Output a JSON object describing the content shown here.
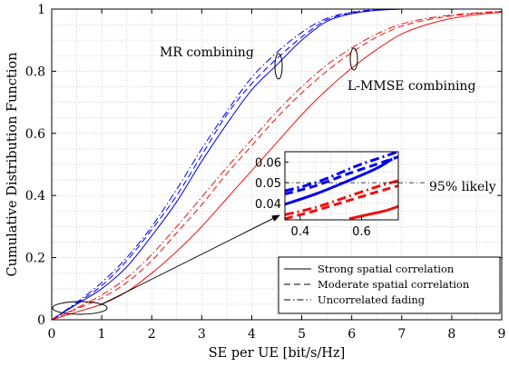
{
  "colors": {
    "mr": "#0000ee",
    "lmmse": "#ee1111",
    "grid": "#bfbfbf",
    "axis": "#000000"
  },
  "chart_data": {
    "type": "line",
    "title": "",
    "xlabel": "SE per UE [bit/s/Hz]",
    "ylabel": "Cumulative Distribution Function",
    "xlim": [
      0,
      9
    ],
    "ylim": [
      0,
      1
    ],
    "xticks": [
      0,
      1,
      2,
      3,
      4,
      5,
      6,
      7,
      8,
      9
    ],
    "yticks": [
      0,
      0.2,
      0.4,
      0.6,
      0.8,
      1
    ],
    "ytick_labels": [
      "0",
      "0.2",
      "0.4",
      "0.6",
      "0.8",
      "1"
    ],
    "grid": true,
    "legend_position": "bottom-right",
    "legend": [
      {
        "label": "Strong spatial correlation",
        "style": "solid"
      },
      {
        "label": "Moderate spatial correlation",
        "style": "dashed"
      },
      {
        "label": "Uncorrelated fading",
        "style": "dashdot"
      }
    ],
    "annotations": {
      "mr": "MR combining",
      "lmmse": "L-MMSE combining",
      "likely": "95% likely"
    },
    "series": [
      {
        "group": "mr",
        "style": "solid",
        "x": [
          0,
          0.5,
          1,
          1.5,
          2,
          2.5,
          3,
          3.5,
          4,
          4.5,
          5,
          5.5,
          6,
          6.5,
          7
        ],
        "y": [
          0,
          0.05,
          0.1,
          0.17,
          0.27,
          0.38,
          0.51,
          0.63,
          0.74,
          0.82,
          0.9,
          0.96,
          0.985,
          0.996,
          1.0
        ]
      },
      {
        "group": "mr",
        "style": "dashed",
        "x": [
          0,
          0.5,
          1,
          1.5,
          2,
          2.5,
          3,
          3.5,
          4,
          4.5,
          5,
          5.5,
          6,
          6.5,
          7
        ],
        "y": [
          0,
          0.053,
          0.11,
          0.19,
          0.29,
          0.4,
          0.53,
          0.66,
          0.76,
          0.84,
          0.91,
          0.965,
          0.988,
          0.997,
          1.0
        ]
      },
      {
        "group": "mr",
        "style": "dashdot",
        "x": [
          0,
          0.5,
          1,
          1.5,
          2,
          2.5,
          3,
          3.5,
          4,
          4.5,
          5,
          5.5,
          6,
          6.5,
          7
        ],
        "y": [
          0,
          0.056,
          0.12,
          0.2,
          0.3,
          0.42,
          0.55,
          0.67,
          0.78,
          0.86,
          0.925,
          0.97,
          0.99,
          0.998,
          1.0
        ]
      },
      {
        "group": "lmmse",
        "style": "solid",
        "x": [
          0,
          0.5,
          1,
          1.5,
          2,
          2.5,
          3,
          3.5,
          4,
          4.5,
          5,
          5.5,
          6,
          6.5,
          7,
          7.5,
          8,
          8.5,
          9
        ],
        "y": [
          0,
          0.025,
          0.05,
          0.09,
          0.15,
          0.22,
          0.3,
          0.39,
          0.48,
          0.57,
          0.66,
          0.74,
          0.81,
          0.87,
          0.92,
          0.95,
          0.97,
          0.982,
          0.99
        ]
      },
      {
        "group": "lmmse",
        "style": "dashed",
        "x": [
          0,
          0.5,
          1,
          1.5,
          2,
          2.5,
          3,
          3.5,
          4,
          4.5,
          5,
          5.5,
          6,
          6.5,
          7,
          7.5,
          8,
          8.5,
          9
        ],
        "y": [
          0,
          0.035,
          0.07,
          0.12,
          0.19,
          0.28,
          0.37,
          0.47,
          0.56,
          0.65,
          0.73,
          0.8,
          0.86,
          0.91,
          0.945,
          0.965,
          0.978,
          0.986,
          0.992
        ]
      },
      {
        "group": "lmmse",
        "style": "dashdot",
        "x": [
          0,
          0.5,
          1,
          1.5,
          2,
          2.5,
          3,
          3.5,
          4,
          4.5,
          5,
          5.5,
          6,
          6.5,
          7,
          7.5,
          8,
          8.5,
          9
        ],
        "y": [
          0,
          0.038,
          0.08,
          0.135,
          0.21,
          0.3,
          0.395,
          0.49,
          0.58,
          0.67,
          0.75,
          0.82,
          0.875,
          0.92,
          0.952,
          0.97,
          0.981,
          0.988,
          0.993
        ]
      }
    ],
    "inset": {
      "xlim": [
        0.35,
        0.72
      ],
      "ylim": [
        0.032,
        0.065
      ],
      "xticks": [
        0.4,
        0.6
      ],
      "yticks": [
        0.04,
        0.05,
        0.06
      ],
      "ytick_labels": [
        "0.04",
        "0.05",
        "0.06"
      ],
      "reference_y": 0.05,
      "series": [
        {
          "group": "mr",
          "style": "dashdot",
          "x": [
            0.35,
            0.45,
            0.55,
            0.6,
            0.72
          ],
          "y": [
            0.046,
            0.05,
            0.056,
            0.059,
            0.065
          ]
        },
        {
          "group": "mr",
          "style": "dashed",
          "x": [
            0.35,
            0.45,
            0.55,
            0.65,
            0.72
          ],
          "y": [
            0.0445,
            0.0485,
            0.054,
            0.059,
            0.0625
          ]
        },
        {
          "group": "mr",
          "style": "solid",
          "x": [
            0.35,
            0.45,
            0.55,
            0.65,
            0.7
          ],
          "y": [
            0.0395,
            0.0445,
            0.0505,
            0.057,
            0.0615
          ]
        },
        {
          "group": "lmmse",
          "style": "dashdot",
          "x": [
            0.35,
            0.45,
            0.55,
            0.65,
            0.72
          ],
          "y": [
            0.0345,
            0.038,
            0.043,
            0.048,
            0.051
          ]
        },
        {
          "group": "lmmse",
          "style": "dashed",
          "x": [
            0.35,
            0.45,
            0.55,
            0.65,
            0.72
          ],
          "y": [
            0.0325,
            0.0365,
            0.041,
            0.0455,
            0.0485
          ]
        },
        {
          "group": "lmmse",
          "style": "solid",
          "x": [
            0.56,
            0.62,
            0.68,
            0.72
          ],
          "y": [
            0.0325,
            0.0345,
            0.0365,
            0.0385
          ]
        }
      ]
    }
  }
}
